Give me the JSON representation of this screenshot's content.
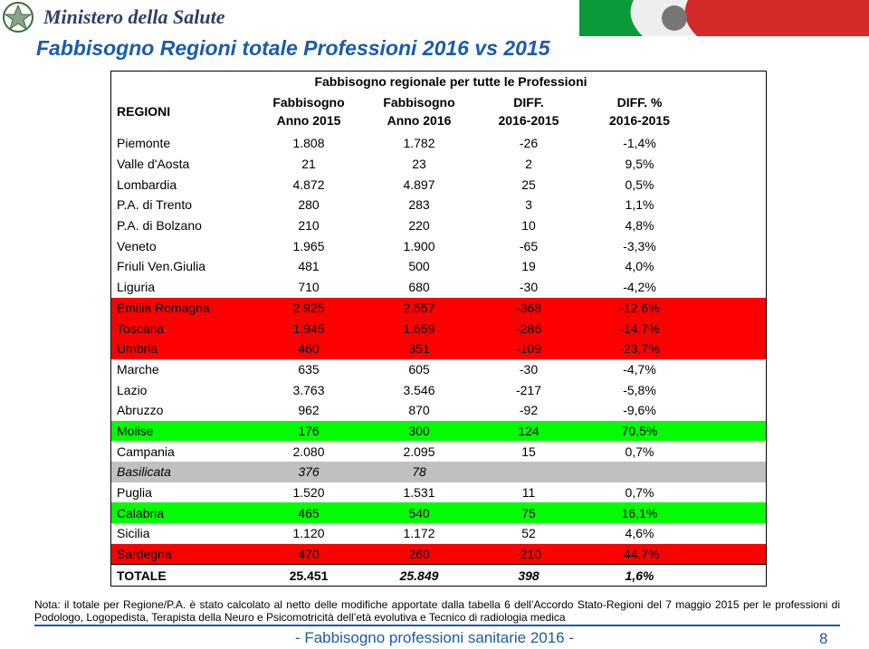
{
  "header": {
    "logo_text": "Ministero della Salute"
  },
  "title": "Fabbisogno Regioni totale Professioni 2016 vs 2015",
  "table": {
    "group_header": "Fabbisogno regionale per tutte le Professioni",
    "region_header": "REGIONI",
    "columns": [
      [
        "Fabbisogno",
        "Anno 2015"
      ],
      [
        "Fabbisogno",
        "Anno 2016"
      ],
      [
        "DIFF.",
        "2016-2015"
      ],
      [
        "DIFF. %",
        "2016-2015"
      ]
    ],
    "rows": [
      {
        "cells": [
          "Piemonte",
          "1.808",
          "1.782",
          "-26",
          "-1,4%"
        ]
      },
      {
        "cells": [
          "Valle d'Aosta",
          "21",
          "23",
          "2",
          "9,5%"
        ]
      },
      {
        "cells": [
          "Lombardia",
          "4.872",
          "4.897",
          "25",
          "0,5%"
        ]
      },
      {
        "cells": [
          "P.A. di Trento",
          "280",
          "283",
          "3",
          "1,1%"
        ]
      },
      {
        "cells": [
          "P.A. di Bolzano",
          "210",
          "220",
          "10",
          "4,8%"
        ]
      },
      {
        "cells": [
          "Veneto",
          "1.965",
          "1.900",
          "-65",
          "-3,3%"
        ]
      },
      {
        "cells": [
          "Friuli Ven.Giulia",
          "481",
          "500",
          "19",
          "4,0%"
        ]
      },
      {
        "cells": [
          "Liguria",
          "710",
          "680",
          "-30",
          "-4,2%"
        ]
      },
      {
        "cells": [
          "Emilia Romagna",
          "2.925",
          "2.557",
          "-368",
          "-12,6%"
        ],
        "highlight": "#ff0000"
      },
      {
        "cells": [
          "Toscana",
          "1.945",
          "1.659",
          "-286",
          "-14,7%"
        ],
        "highlight": "#ff0000"
      },
      {
        "cells": [
          "Umbria",
          "460",
          "351",
          "-109",
          "-23,7%"
        ],
        "highlight": "#ff0000"
      },
      {
        "cells": [
          "Marche",
          "635",
          "605",
          "-30",
          "-4,7%"
        ]
      },
      {
        "cells": [
          "Lazio",
          "3.763",
          "3.546",
          "-217",
          "-5,8%"
        ]
      },
      {
        "cells": [
          "Abruzzo",
          "962",
          "870",
          "-92",
          "-9,6%"
        ]
      },
      {
        "cells": [
          "Molise",
          "176",
          "300",
          "124",
          "70,5%"
        ],
        "highlight": "#00ff00"
      },
      {
        "cells": [
          "Campania",
          "2.080",
          "2.095",
          "15",
          "0,7%"
        ]
      },
      {
        "cells": [
          "Basilicata",
          "376",
          "78",
          null,
          null
        ],
        "highlight": "#c0c0c0",
        "italic": true
      },
      {
        "cells": [
          "Puglia",
          "1.520",
          "1.531",
          "11",
          "0,7%"
        ]
      },
      {
        "cells": [
          "Calabria",
          "465",
          "540",
          "75",
          "16,1%"
        ],
        "highlight": "#00ff00"
      },
      {
        "cells": [
          "Sicilia",
          "1.120",
          "1.172",
          "52",
          "4,6%"
        ]
      },
      {
        "cells": [
          "Sardegna",
          "470",
          "260",
          "-210",
          "-44,7%"
        ],
        "highlight": "#ff0000"
      }
    ],
    "total": [
      "TOTALE",
      "25.451",
      "25.849",
      "398",
      "1,6%"
    ]
  },
  "note": "Nota: il totale per Regione/P.A. è stato calcolato al netto delle modifiche apportate dalla tabella 6 dell’Accordo Stato-Regioni del 7 maggio 2015 per le professioni di Podologo, Logopedista, Terapista della Neuro e Psicomotricità dell’età evolutiva e Tecnico di radiologia medica",
  "footer": "- Fabbisogno professioni sanitarie 2016 -",
  "page_number": "8"
}
